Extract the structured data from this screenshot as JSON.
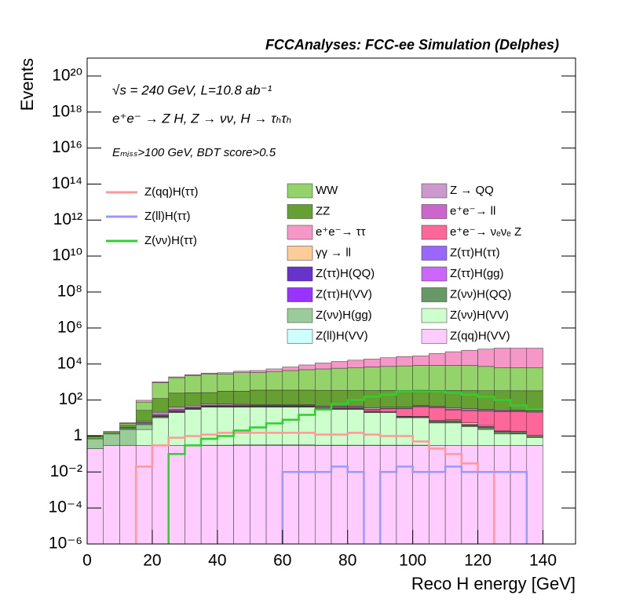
{
  "chart_data": {
    "type": "stacked_histogram",
    "title": "FCCAnalyses: FCC-ee Simulation (Delphes)",
    "annotations": [
      "√s = 240 GeV, L=10.8 ab⁻¹",
      "e⁺e⁻ → Z H, Z → νν, H → τₕτₕ",
      "Eₘᵢₛₛ>100 GeV, BDT score>0.5"
    ],
    "xlabel": "Reco H energy [GeV]",
    "ylabel": "Events",
    "log_y": true,
    "xlim": [
      0,
      150
    ],
    "ylim": [
      1e-06,
      1e+21
    ],
    "xticks": [
      0,
      20,
      40,
      60,
      80,
      100,
      120,
      140
    ],
    "yticks": [
      {
        "value": 1e-06,
        "label": "10⁻⁶"
      },
      {
        "value": 0.0001,
        "label": "10⁻⁴"
      },
      {
        "value": 0.01,
        "label": "10⁻²"
      },
      1,
      {
        "value": 100,
        "label": "10²"
      },
      {
        "value": 10000,
        "label": "10⁴"
      },
      {
        "value": 1000000.0,
        "label": "10⁶"
      },
      {
        "value": 100000000.0,
        "label": "10⁸"
      },
      {
        "value": 10000000000.0,
        "label": "10¹⁰"
      },
      {
        "value": 1000000000000.0,
        "label": "10¹²"
      },
      {
        "value": 100000000000000.0,
        "label": "10¹⁴"
      },
      {
        "value": 1e+16,
        "label": "10¹⁶"
      },
      {
        "value": 1e+18,
        "label": "10¹⁸"
      },
      {
        "value": 1e+20,
        "label": "10²⁰"
      }
    ],
    "bins": [
      0,
      5,
      10,
      15,
      20,
      25,
      30,
      35,
      40,
      45,
      50,
      55,
      60,
      65,
      70,
      75,
      80,
      85,
      90,
      95,
      100,
      105,
      110,
      115,
      120,
      125,
      130,
      135,
      140
    ],
    "series": [
      {
        "name": "WW",
        "color": "#94d26a",
        "values": [
          0.1,
          0.2,
          1,
          50,
          800,
          1500,
          2000,
          2500,
          2500,
          3000,
          3000,
          3500,
          4000,
          4500,
          5000,
          5500,
          6000,
          6500,
          7000,
          7500,
          8000,
          8000,
          8000,
          8000,
          7000,
          6000,
          6000,
          6000
        ]
      },
      {
        "name": "Z → QQ",
        "color": "#cc99cc",
        "values": [
          0,
          0,
          0,
          1,
          5,
          10,
          10,
          8,
          8,
          6,
          5,
          5,
          5,
          5,
          5,
          5,
          5,
          5,
          5,
          5,
          5,
          5,
          5,
          5,
          3,
          3,
          2,
          1
        ]
      },
      {
        "name": "ZZ",
        "color": "#66a032",
        "values": [
          0.3,
          0.3,
          1,
          20,
          100,
          200,
          200,
          200,
          250,
          250,
          300,
          300,
          300,
          300,
          300,
          300,
          300,
          300,
          300,
          300,
          300,
          300,
          300,
          300,
          300,
          300,
          300,
          300
        ]
      },
      {
        "name": "e⁺e⁻→ ll",
        "color": "#cc66cc",
        "values": [
          0,
          0,
          0,
          0,
          2,
          5,
          5,
          5,
          5,
          5,
          3,
          3,
          3,
          3,
          3,
          3,
          3,
          3,
          3,
          3,
          3,
          3,
          3,
          3,
          3,
          3,
          3,
          3
        ]
      },
      {
        "name": "e⁺e⁻→ ττ",
        "color": "#f598c8",
        "values": [
          0,
          0,
          0.5,
          20,
          100,
          200,
          300,
          400,
          500,
          700,
          1000,
          1500,
          2500,
          4000,
          6000,
          8000,
          10000,
          12000,
          15000,
          18000,
          20000,
          30000,
          40000,
          50000,
          60000,
          70000,
          70000,
          70000
        ]
      },
      {
        "name": "e⁺e⁻→ νₑνₑ Z",
        "color": "#ff6699",
        "values": [
          0,
          0,
          0,
          0,
          1,
          2,
          2,
          2,
          3,
          3,
          3,
          3,
          3,
          3,
          5,
          5,
          5,
          5,
          10,
          20,
          30,
          30,
          20,
          20,
          20,
          20,
          20,
          20
        ]
      },
      {
        "name": "γγ → ll",
        "color": "#ffcc99",
        "values": [
          0,
          0,
          0,
          0,
          0,
          0,
          0,
          0,
          0,
          0,
          0,
          0,
          0,
          0,
          0,
          0,
          0,
          0,
          0,
          0.2,
          0,
          0,
          1,
          1,
          0.5,
          0,
          0,
          0
        ]
      },
      {
        "name": "Z(ττ)H(ττ)",
        "color": "#9966ff",
        "values": [
          0,
          0,
          0.2,
          0.3,
          0.5,
          0.5,
          0.5,
          0.5,
          0.5,
          0.5,
          0.5,
          0.5,
          0.5,
          0.5,
          0.5,
          0.5,
          0.5,
          0.5,
          0.3,
          0.3,
          0.3,
          0.3,
          0.3,
          0.2,
          0.2,
          0.1,
          0.1,
          0
        ]
      },
      {
        "name": "Z(ττ)H(QQ)",
        "color": "#6633cc",
        "values": [
          0,
          0,
          0,
          0.01,
          0.02,
          0.05,
          0.1,
          0.05,
          0.1,
          0.1,
          0.05,
          0.1,
          0.05,
          0.02,
          0.05,
          0.01,
          0.02,
          0.05,
          0.01,
          0.02,
          0.01,
          0.01,
          0,
          0.01,
          0,
          0,
          0,
          0
        ]
      },
      {
        "name": "Z(ττ)H(gg)",
        "color": "#cc66ff",
        "values": [
          0,
          0,
          0,
          0,
          0.05,
          0.1,
          0.1,
          0.1,
          0.1,
          0.1,
          0.1,
          0.1,
          0.1,
          0.1,
          0.1,
          0.1,
          0.05,
          0.05,
          0.05,
          0.05,
          0.05,
          0.02,
          0.02,
          0.02,
          0.01,
          0,
          0,
          0
        ]
      },
      {
        "name": "Z(ττ)H(VV)",
        "color": "#9933ff",
        "values": [
          0,
          0,
          0,
          0.05,
          0.1,
          0.2,
          0.2,
          0.2,
          0.2,
          0.2,
          0.2,
          0.2,
          0.2,
          0.2,
          0.2,
          0.2,
          0.2,
          0.1,
          0.1,
          0.1,
          0.1,
          0.1,
          0.1,
          0.05,
          0.05,
          0.02,
          0.01,
          0
        ]
      },
      {
        "name": "Z(νν)H(QQ)",
        "color": "#669966",
        "values": [
          0,
          0,
          0.5,
          1,
          1,
          2,
          2,
          2,
          2,
          2,
          2,
          2,
          2,
          2,
          2,
          2,
          2,
          1,
          1,
          1,
          1,
          1,
          1,
          0.5,
          0.5,
          0.3,
          0.3,
          0.2
        ]
      },
      {
        "name": "Z(νν)H(gg)",
        "color": "#99cc99",
        "values": [
          0.5,
          1,
          2,
          2,
          1,
          1,
          1,
          1,
          1,
          1,
          1,
          1,
          1,
          1,
          1,
          1,
          1,
          1,
          0.5,
          0.5,
          0.5,
          0.5,
          0.5,
          0.3,
          0.3,
          0.2,
          0.1,
          0.1
        ]
      },
      {
        "name": "Z(νν)H(VV)",
        "color": "#ccffcc",
        "values": [
          0,
          0,
          0,
          2,
          10,
          20,
          30,
          40,
          40,
          40,
          40,
          40,
          40,
          40,
          30,
          30,
          30,
          20,
          20,
          10,
          10,
          5,
          5,
          3,
          2,
          1,
          1,
          0.5
        ]
      },
      {
        "name": "Z(ll)H(VV)",
        "color": "#ccffff",
        "values": [
          0,
          0,
          0,
          0,
          0,
          0,
          0,
          0.01,
          0.01,
          0.02,
          0.02,
          0.02,
          0.02,
          0.02,
          0.01,
          0.01,
          0.01,
          0.01,
          0.01,
          0.01,
          0.01,
          0,
          0,
          0,
          0,
          0,
          0,
          0
        ]
      },
      {
        "name": "Z(qq)H(VV)",
        "color": "#ffccff",
        "values": [
          0.2,
          0.3,
          0.3,
          0.3,
          0.3,
          0.3,
          0.3,
          0.3,
          0.3,
          0.3,
          0.3,
          0.3,
          0.3,
          0.3,
          0.3,
          0.3,
          0.3,
          0.3,
          0.3,
          0.3,
          0.3,
          0.3,
          0.3,
          0.3,
          0.3,
          0.3,
          0.3,
          0.3
        ]
      }
    ],
    "signals": [
      {
        "name": "Z(qq)H(ττ)",
        "color": "#ff9999",
        "values": [
          0,
          0,
          0,
          0.02,
          0.3,
          0.8,
          1,
          1.2,
          1.5,
          1.5,
          1.5,
          1.5,
          1.5,
          1.5,
          1.2,
          1.2,
          1.5,
          1.2,
          1,
          1,
          0.5,
          0.2,
          0.1,
          0.03,
          0.01,
          0,
          0,
          0
        ]
      },
      {
        "name": "Z(ll)H(ττ)",
        "color": "#9999ff",
        "values": [
          0,
          0,
          0,
          0,
          0,
          0,
          0,
          0,
          0,
          0,
          0,
          0,
          0.01,
          0.01,
          0.01,
          0.02,
          0.01,
          0,
          0.01,
          0.02,
          0.01,
          0.01,
          0.02,
          0.01,
          0.01,
          0.01,
          0.01,
          0
        ]
      },
      {
        "name": "Z(νν)H(ττ)",
        "color": "#33cc33",
        "values": [
          0,
          0,
          0,
          0,
          0,
          0.1,
          0.3,
          0.7,
          1,
          2,
          3,
          5,
          8,
          15,
          30,
          60,
          100,
          150,
          200,
          300,
          300,
          300,
          250,
          200,
          150,
          100,
          50,
          30
        ]
      }
    ]
  }
}
